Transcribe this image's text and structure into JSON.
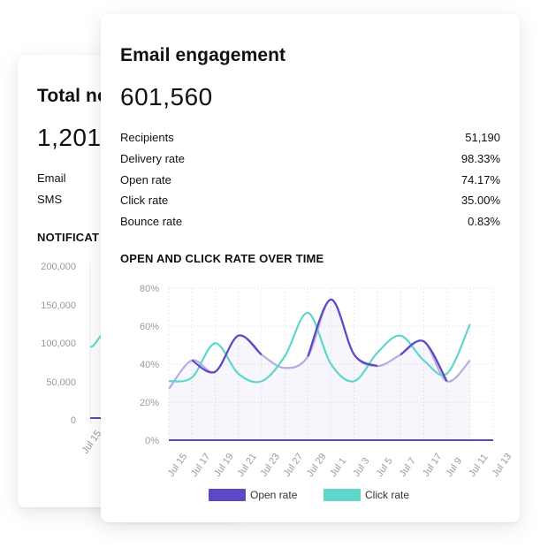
{
  "back_card": {
    "title": "Total no",
    "total": "1,201,",
    "rows": [
      {
        "label": "Email"
      },
      {
        "label": "SMS"
      }
    ],
    "section_title": "NOTIFICAT",
    "y_ticks": [
      "200,000",
      "150,000",
      "100,000",
      "50,000",
      "0"
    ],
    "x_ticks": [
      "Jul 15"
    ]
  },
  "front_card": {
    "title": "Email engagement",
    "total": "601,560",
    "metrics": [
      {
        "label": "Recipients",
        "value": "51,190"
      },
      {
        "label": "Delivery rate",
        "value": "98.33%"
      },
      {
        "label": "Open rate",
        "value": "74.17%"
      },
      {
        "label": "Click rate",
        "value": "35.00%"
      },
      {
        "label": "Bounce rate",
        "value": "0.83%"
      }
    ],
    "section_title": "OPEN AND CLICK RATE OVER TIME"
  },
  "chart_data": {
    "type": "line",
    "title": "OPEN AND CLICK RATE OVER TIME",
    "categories": [
      "Jul 15",
      "Jul 17",
      "Jul 19",
      "Jul 21",
      "Jul 23",
      "Jul 27",
      "Jul 29",
      "Jul 1",
      "Jul 3",
      "Jul 5",
      "Jul 7",
      "Jul 17",
      "Jul 9",
      "Jul 11",
      "Jul 13"
    ],
    "y_ticks": [
      "80%",
      "60%",
      "40%",
      "20%",
      "0%"
    ],
    "ylim": [
      0,
      80
    ],
    "grid": true,
    "legend_position": "bottom",
    "series": [
      {
        "name": "Open rate",
        "color": "#5b48c2",
        "values": [
          27,
          42,
          36,
          55,
          45,
          38,
          44,
          74,
          45,
          39,
          45,
          52,
          31,
          42,
          0
        ]
      },
      {
        "name": "Click rate",
        "color": "#5ed6cc",
        "values": [
          31,
          33,
          51,
          35,
          31,
          44,
          67,
          40,
          31,
          46,
          55,
          42,
          35,
          61,
          0
        ]
      }
    ],
    "baseline_series_color": "#5b48c2"
  },
  "colors": {
    "open": "#5b48c2",
    "open_light": "#b7abe0",
    "click": "#5ed6cc",
    "grid": "#ebebeb"
  }
}
